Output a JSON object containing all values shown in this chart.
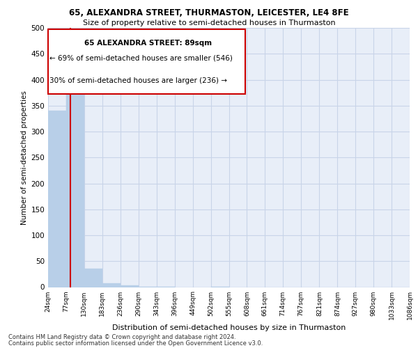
{
  "title": "65, ALEXANDRA STREET, THURMASTON, LEICESTER, LE4 8FE",
  "subtitle": "Size of property relative to semi-detached houses in Thurmaston",
  "xlabel": "Distribution of semi-detached houses by size in Thurmaston",
  "ylabel": "Number of semi-detached properties",
  "footnote1": "Contains HM Land Registry data © Crown copyright and database right 2024.",
  "footnote2": "Contains public sector information licensed under the Open Government Licence v3.0.",
  "annotation_title": "65 ALEXANDRA STREET: 89sqm",
  "annotation_line1": "← 69% of semi-detached houses are smaller (546)",
  "annotation_line2": "30% of semi-detached houses are larger (236) →",
  "subject_value": 89,
  "bar_edges": [
    24,
    77,
    130,
    183,
    236,
    290,
    343,
    396,
    449,
    502,
    555,
    608,
    661,
    714,
    767,
    821,
    874,
    927,
    980,
    1033,
    1086
  ],
  "bar_heights": [
    340,
    415,
    35,
    8,
    3,
    1,
    1,
    0,
    0,
    1,
    0,
    0,
    0,
    0,
    0,
    0,
    0,
    0,
    0,
    0
  ],
  "bar_color": "#b8cfe8",
  "vline_color": "#cc0000",
  "annotation_box_edgecolor": "#cc0000",
  "annotation_box_facecolor": "#ffffff",
  "grid_color": "#c8d4e8",
  "background_color": "#e8eef8",
  "ylim": [
    0,
    500
  ],
  "yticks": [
    0,
    50,
    100,
    150,
    200,
    250,
    300,
    350,
    400,
    450,
    500
  ],
  "fig_bg": "#ffffff"
}
